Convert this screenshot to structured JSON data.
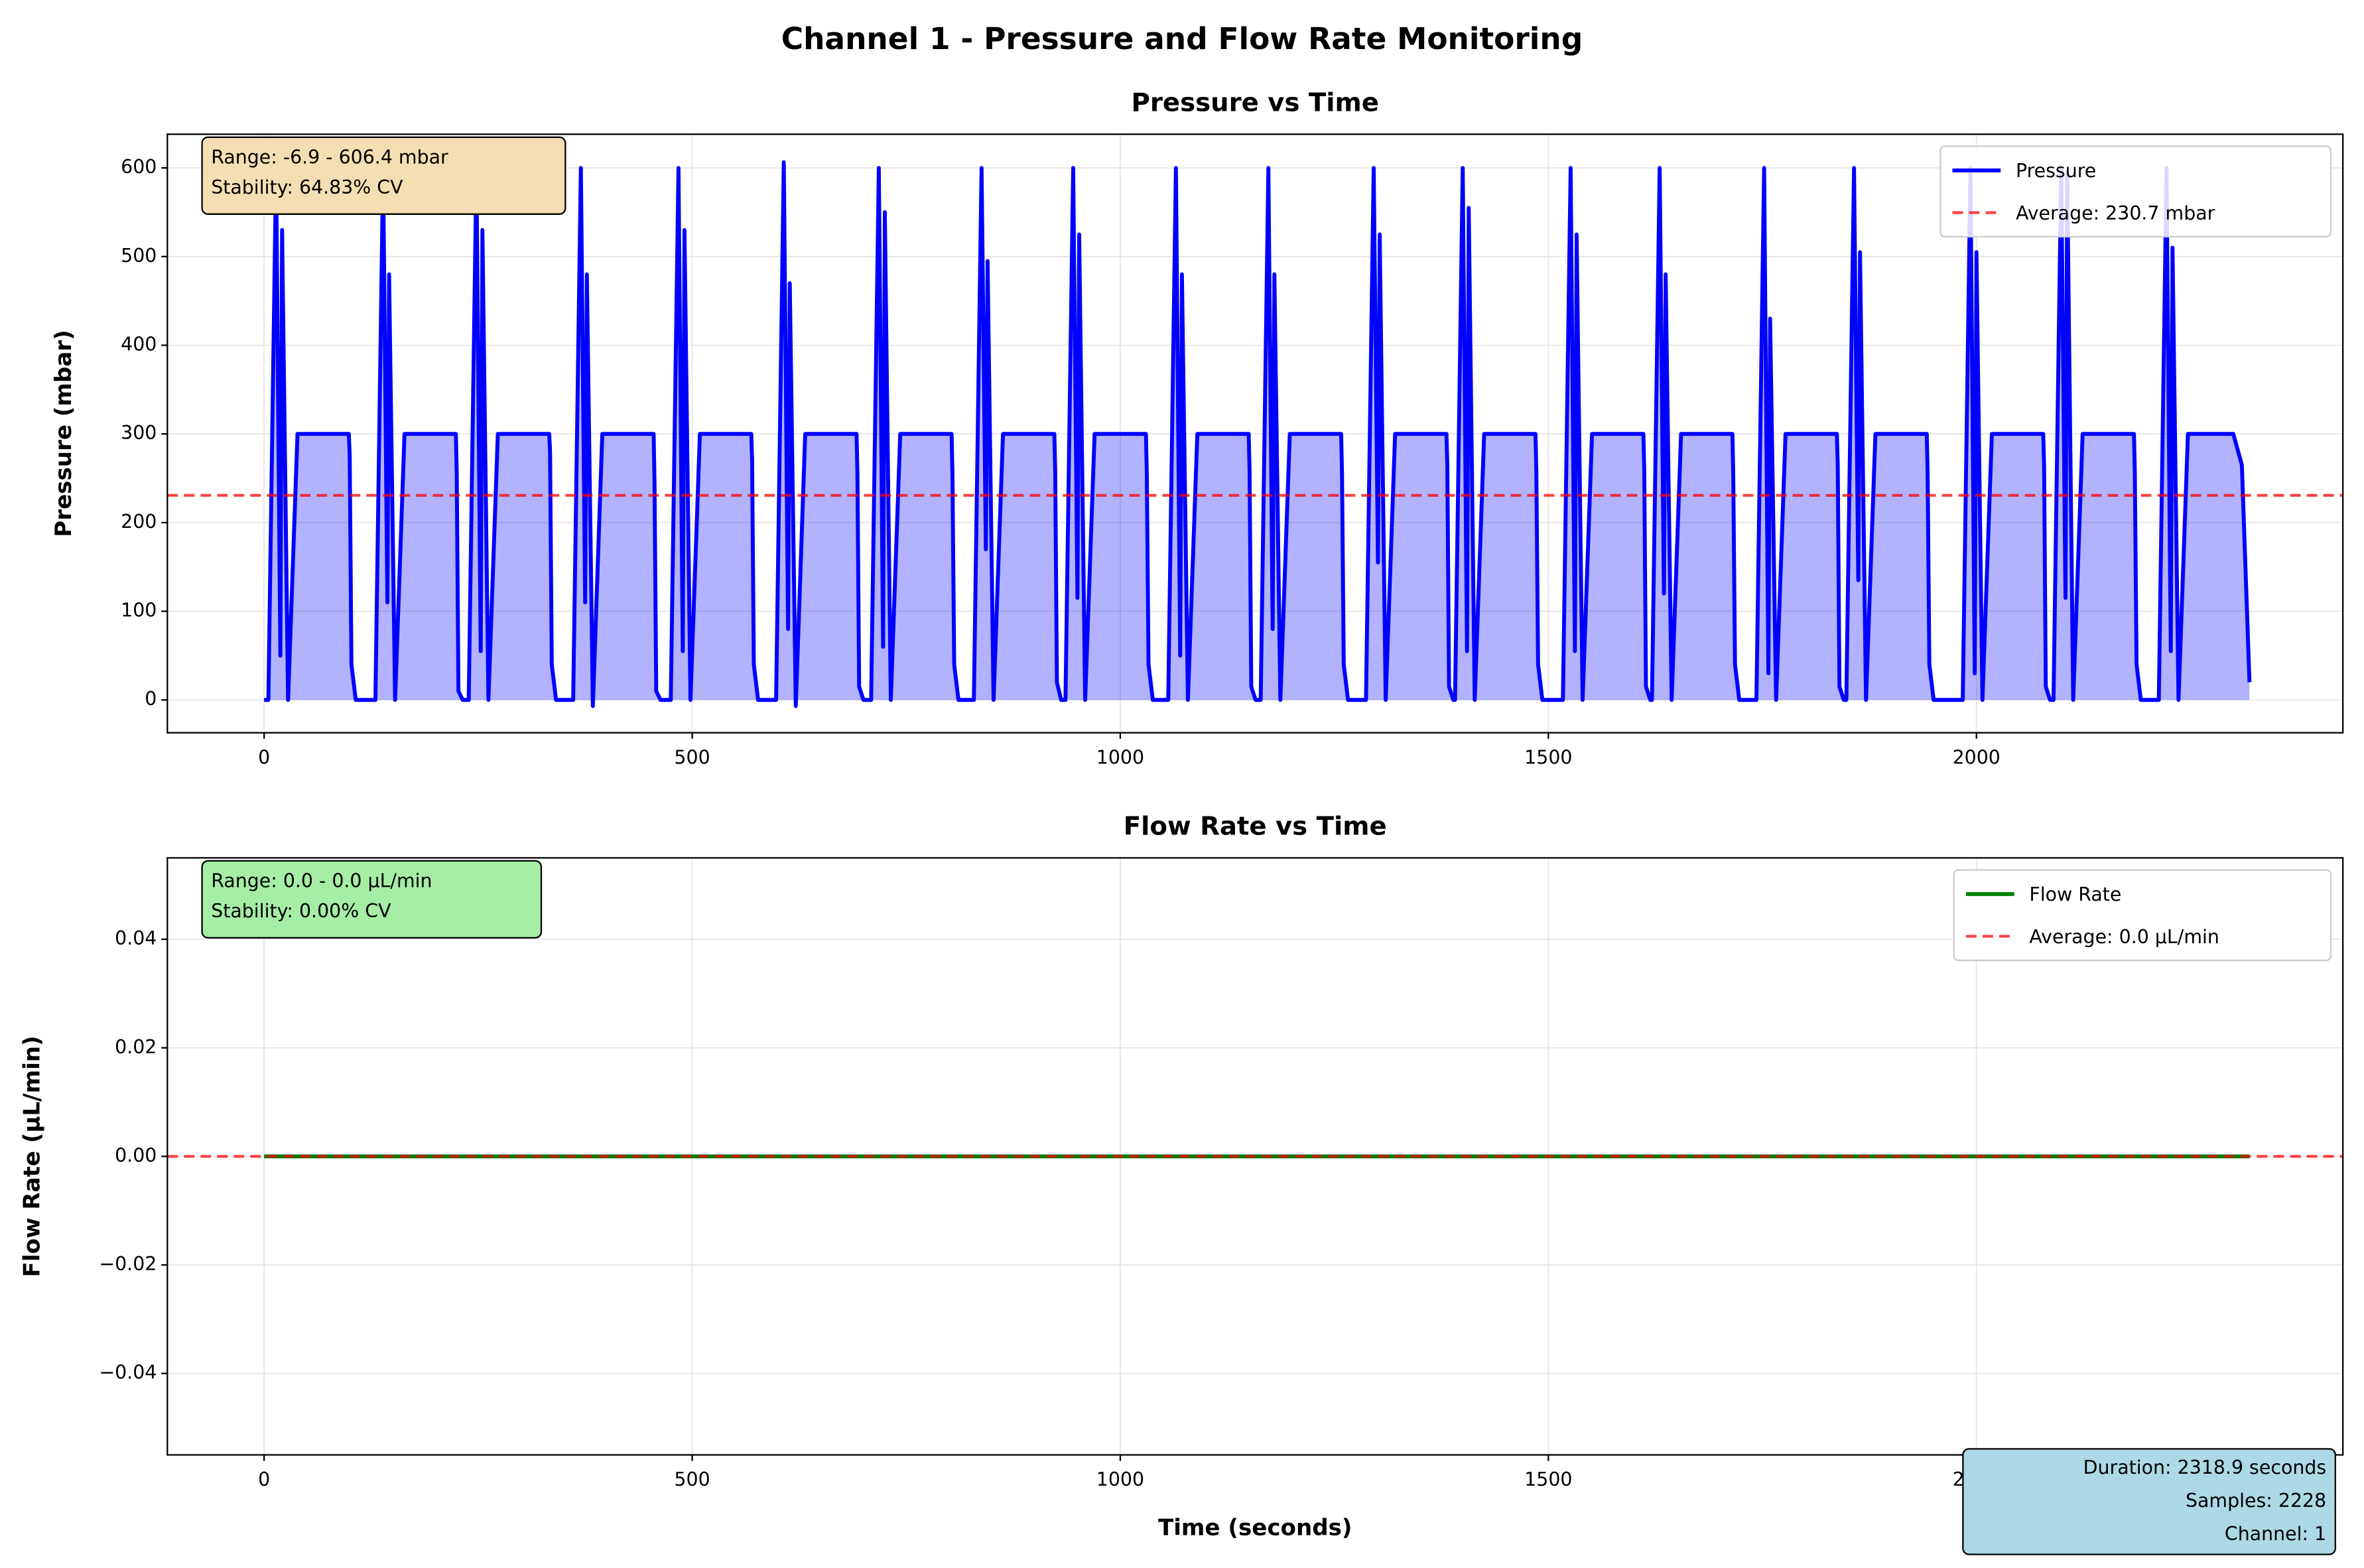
{
  "title": "Channel 1 - Pressure and Flow Rate Monitoring",
  "chart_data": [
    {
      "type": "line",
      "title": "Pressure vs Time",
      "ylabel": "Pressure (mbar)",
      "xlim": [
        -113,
        2428
      ],
      "ylim": [
        -37,
        638
      ],
      "xticks": [
        0,
        500,
        1000,
        1500,
        2000
      ],
      "yticks": [
        0,
        100,
        200,
        300,
        400,
        500,
        600
      ],
      "grid": true,
      "legend": "upper right",
      "x": [
        0,
        5,
        14,
        19,
        21,
        28,
        39,
        99,
        100,
        102,
        107,
        130,
        139,
        144,
        146,
        153,
        164,
        224,
        225,
        227,
        232,
        239,
        248,
        253,
        255,
        262,
        273,
        333,
        334,
        336,
        341,
        361,
        370,
        375,
        377,
        384,
        395,
        455,
        456,
        458,
        463,
        475,
        484,
        489,
        491,
        498,
        509,
        569,
        570,
        572,
        577,
        598,
        607,
        612,
        614,
        621,
        632,
        692,
        693,
        695,
        700,
        709,
        718,
        723,
        725,
        732,
        743,
        803,
        804,
        806,
        811,
        829,
        838,
        843,
        845,
        852,
        863,
        923,
        924,
        926,
        931,
        936,
        945,
        950,
        952,
        959,
        970,
        1030,
        1031,
        1033,
        1038,
        1056,
        1065,
        1070,
        1072,
        1079,
        1090,
        1150,
        1151,
        1153,
        1158,
        1164,
        1173,
        1178,
        1180,
        1187,
        1198,
        1258,
        1259,
        1261,
        1266,
        1287,
        1296,
        1301,
        1303,
        1310,
        1321,
        1381,
        1382,
        1384,
        1389,
        1391,
        1400,
        1405,
        1407,
        1414,
        1425,
        1485,
        1486,
        1488,
        1493,
        1517,
        1526,
        1531,
        1533,
        1540,
        1551,
        1611,
        1612,
        1614,
        1619,
        1621,
        1630,
        1635,
        1637,
        1644,
        1655,
        1715,
        1716,
        1718,
        1723,
        1743,
        1752,
        1757,
        1759,
        1766,
        1777,
        1837,
        1838,
        1840,
        1845,
        1848,
        1857,
        1862,
        1864,
        1871,
        1882,
        1942,
        1943,
        1945,
        1950,
        1984,
        1993,
        1998,
        2000,
        2007,
        2018,
        2078,
        2079,
        2081,
        2086,
        2090,
        2099,
        2104,
        2106,
        2113,
        2124,
        2184,
        2185,
        2187,
        2192,
        2213,
        2222,
        2227,
        2229,
        2236,
        2247,
        2300,
        2310,
        2318.9
      ],
      "series": [
        {
          "name": "Pressure",
          "color": "#0000ff",
          "fill_color": "#0000ff",
          "values": [
            0,
            0,
            600,
            50,
            530,
            0,
            300,
            300,
            275,
            40,
            0,
            0,
            600,
            110,
            480,
            0,
            300,
            300,
            255,
            10,
            0,
            0,
            600,
            55,
            530,
            0,
            300,
            300,
            280,
            40,
            0,
            0,
            600,
            110,
            480,
            -6.9,
            300,
            300,
            245,
            10,
            0,
            0,
            600,
            55,
            530,
            0,
            300,
            300,
            270,
            40,
            0,
            0,
            606.4,
            80,
            470,
            -6.9,
            300,
            300,
            255,
            15,
            0,
            0,
            600,
            60,
            550,
            0,
            300,
            300,
            255,
            40,
            0,
            0,
            600,
            170,
            495,
            0,
            300,
            300,
            260,
            20,
            0,
            0,
            600,
            115,
            525,
            0,
            300,
            300,
            255,
            40,
            0,
            0,
            600,
            50,
            480,
            0,
            300,
            300,
            260,
            15,
            0,
            0,
            600,
            80,
            480,
            0,
            300,
            300,
            255,
            40,
            0,
            0,
            600,
            155,
            525,
            0,
            300,
            300,
            265,
            15,
            0,
            0,
            600,
            55,
            555,
            0,
            300,
            300,
            255,
            40,
            0,
            0,
            600,
            55,
            525,
            0,
            300,
            300,
            260,
            15,
            0,
            0,
            600,
            120,
            480,
            0,
            300,
            300,
            250,
            40,
            0,
            0,
            600,
            30,
            430,
            0,
            300,
            300,
            265,
            15,
            0,
            0,
            600,
            135,
            505,
            0,
            300,
            300,
            255,
            40,
            0,
            0,
            600,
            30,
            505,
            0,
            300,
            300,
            265,
            15,
            0,
            0,
            600,
            115,
            595,
            0,
            300,
            300,
            255,
            40,
            0,
            0,
            600,
            55,
            510,
            0,
            300,
            300,
            265,
            20
          ]
        }
      ],
      "average": {
        "value": 230.7,
        "label": "Average: 230.7 mbar",
        "color": "#ff0000"
      },
      "annotation": {
        "lines": [
          "Range: -6.9 - 606.4 mbar",
          "Stability: 64.83% CV"
        ],
        "color": "#f5deb3"
      }
    },
    {
      "type": "line",
      "title": "Flow Rate vs Time",
      "xlabel": "Time (seconds)",
      "ylabel": "Flow Rate (µL/min)",
      "xlim": [
        -113,
        2428
      ],
      "ylim": [
        -0.055,
        0.055
      ],
      "xticks": [
        0,
        500,
        1000,
        1500,
        2000
      ],
      "yticks": [
        {
          "value": -0.04,
          "label": "−0.04"
        },
        {
          "value": -0.02,
          "label": "−0.02"
        },
        {
          "value": 0,
          "label": "0.00"
        },
        0.02,
        0.04
      ],
      "grid": true,
      "legend": "upper right",
      "x": [
        0,
        2318.9
      ],
      "series": [
        {
          "name": "Flow Rate",
          "color": "#008000",
          "values": [
            0,
            0
          ]
        }
      ],
      "average": {
        "value": 0,
        "label": "Average: 0.0 µL/min",
        "color": "#ff0000"
      },
      "annotation": {
        "lines": [
          "Range: 0.0 - 0.0 µL/min",
          "Stability: 0.00% CV"
        ],
        "color": "#a6eda6"
      }
    }
  ],
  "info_box": {
    "lines": [
      "Duration: 2318.9 seconds",
      "Samples: 2228",
      "Channel: 1"
    ],
    "color": "#add8e6"
  }
}
